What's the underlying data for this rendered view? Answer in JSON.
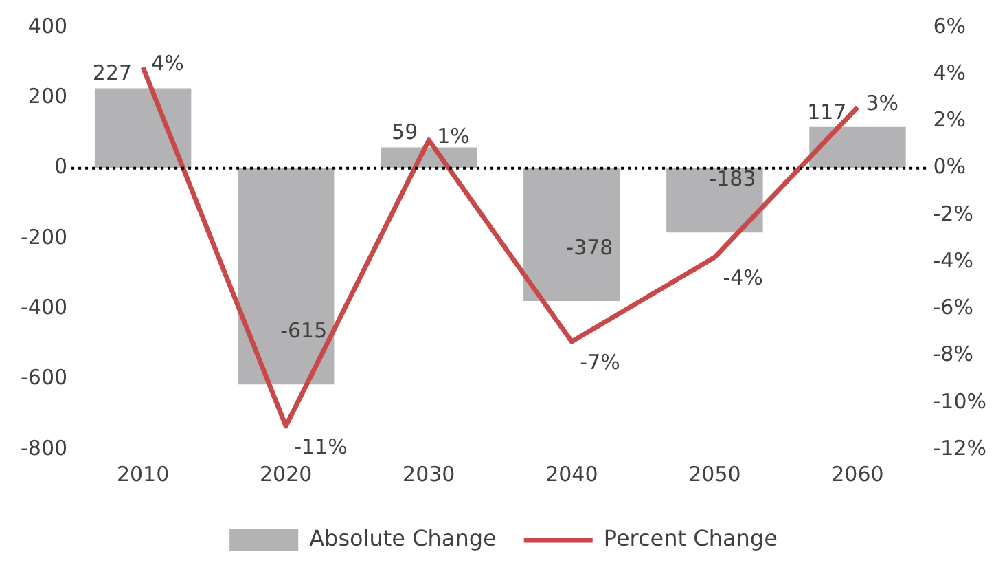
{
  "chart_data": {
    "type": "bar",
    "categories": [
      "2010",
      "2020",
      "2030",
      "2040",
      "2050",
      "2060"
    ],
    "series": [
      {
        "name": "Absolute Change",
        "color": "#b3b3b6",
        "values": [
          227,
          -615,
          59,
          -378,
          -183,
          117
        ],
        "value_labels": [
          "227",
          "-615",
          "59",
          "-378",
          "-183",
          "117"
        ]
      },
      {
        "name": "Percent Change",
        "type": "line",
        "axis": "y2",
        "color": "#c8494a",
        "values": [
          4.3,
          -11,
          1.2,
          -7.4,
          -3.8,
          2.6
        ],
        "value_labels": [
          "4%",
          "-11%",
          "1%",
          "-7%",
          "-4%",
          "3%"
        ],
        "marker": "none"
      }
    ],
    "ylim": [
      -800,
      400
    ],
    "yticks": [
      -800,
      -600,
      -400,
      -200,
      0,
      200,
      400
    ],
    "y2lim": [
      -12,
      6
    ],
    "y2ticks": [
      {
        "value": -12,
        "label": "-12%"
      },
      {
        "value": -10,
        "label": "-10%"
      },
      {
        "value": -8,
        "label": "-8%"
      },
      {
        "value": -6,
        "label": "-6%"
      },
      {
        "value": -4,
        "label": "-4%"
      },
      {
        "value": -2,
        "label": "-2%"
      },
      {
        "value": 0,
        "label": "0%"
      },
      {
        "value": 2,
        "label": "2%"
      },
      {
        "value": 4,
        "label": "4%"
      },
      {
        "value": 6,
        "label": "6%"
      }
    ],
    "ref_lines": [
      {
        "axis": "y",
        "value": 0,
        "color": "#000000",
        "line_style": "dotted"
      }
    ],
    "grid": false,
    "legend": "bottom"
  }
}
